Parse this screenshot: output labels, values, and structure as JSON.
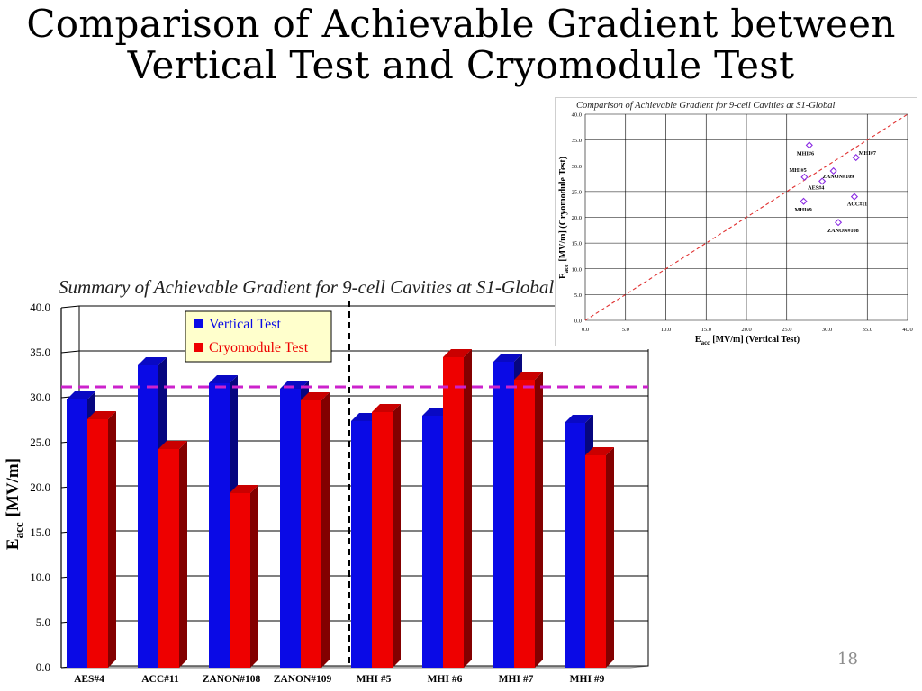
{
  "slide": {
    "title_line1": "Comparison of Achievable Gradient between",
    "title_line2": "Vertical Test and Cryomodule Test",
    "page_number": "18"
  },
  "chart_data": [
    {
      "type": "bar",
      "title": "Summary of Achievable Gradient for 9-cell Cavities at S1-Global",
      "ylabel_main": "E",
      "ylabel_sub": "acc",
      "ylabel_unit": "[MV/m]",
      "ylim": [
        0,
        40
      ],
      "yticks": [
        "0.0",
        "5.0",
        "10.0",
        "15.0",
        "20.0",
        "25.0",
        "30.0",
        "35.0",
        "40.0"
      ],
      "grid": true,
      "legend_position": "top-center",
      "categories": [
        "AES#4",
        "ACC#11",
        "ZANON#108",
        "ZANON#109",
        "MHI #5",
        "MHI #6",
        "MHI #7",
        "MHI #9"
      ],
      "series": [
        {
          "name": "Vertical Test",
          "color": "#0a0ae6",
          "values": [
            29.6,
            33.4,
            31.4,
            30.8,
            27.2,
            27.8,
            33.8,
            27.0
          ]
        },
        {
          "name": "Cryomodule Test",
          "color": "#ee0000",
          "values": [
            27.4,
            24.1,
            19.2,
            29.5,
            28.2,
            34.3,
            31.8,
            23.4
          ]
        }
      ],
      "reference_line": {
        "value": 31.0,
        "color": "#cc22cc"
      },
      "divider_after_category": "ZANON#109"
    },
    {
      "type": "scatter",
      "title": "Comparison of Achievable Gradient for 9-cell Cavities at S1-Global",
      "xlabel_main": "E",
      "xlabel_sub": "acc",
      "xlabel_unit": "[MV/m] (Vertical Test)",
      "ylabel_main": "E",
      "ylabel_sub": "acc",
      "ylabel_unit": "[MV/m] (Cryomodule Test)",
      "xlim": [
        0,
        40
      ],
      "ylim": [
        0,
        40
      ],
      "xticks": [
        "0.0",
        "5.0",
        "10.0",
        "15.0",
        "20.0",
        "25.0",
        "30.0",
        "35.0",
        "40.0"
      ],
      "yticks": [
        "0.0",
        "5.0",
        "10.0",
        "15.0",
        "20.0",
        "25.0",
        "30.0",
        "35.0",
        "40.0"
      ],
      "grid": true,
      "marker_color": "#8a2be2",
      "diagonal_color": "#e03030",
      "points": [
        {
          "label": "MHI#6",
          "x": 27.8,
          "y": 34.0
        },
        {
          "label": "MHI#7",
          "x": 33.6,
          "y": 31.6
        },
        {
          "label": "MHI#5",
          "x": 27.2,
          "y": 27.8
        },
        {
          "label": "ZANON#109",
          "x": 30.8,
          "y": 29.0
        },
        {
          "label": "AES#4",
          "x": 29.4,
          "y": 27.0
        },
        {
          "label": "ACC#11",
          "x": 33.4,
          "y": 24.0
        },
        {
          "label": "MHI#9",
          "x": 27.1,
          "y": 23.1
        },
        {
          "label": "ZANON#108",
          "x": 31.4,
          "y": 19.0
        }
      ]
    }
  ]
}
